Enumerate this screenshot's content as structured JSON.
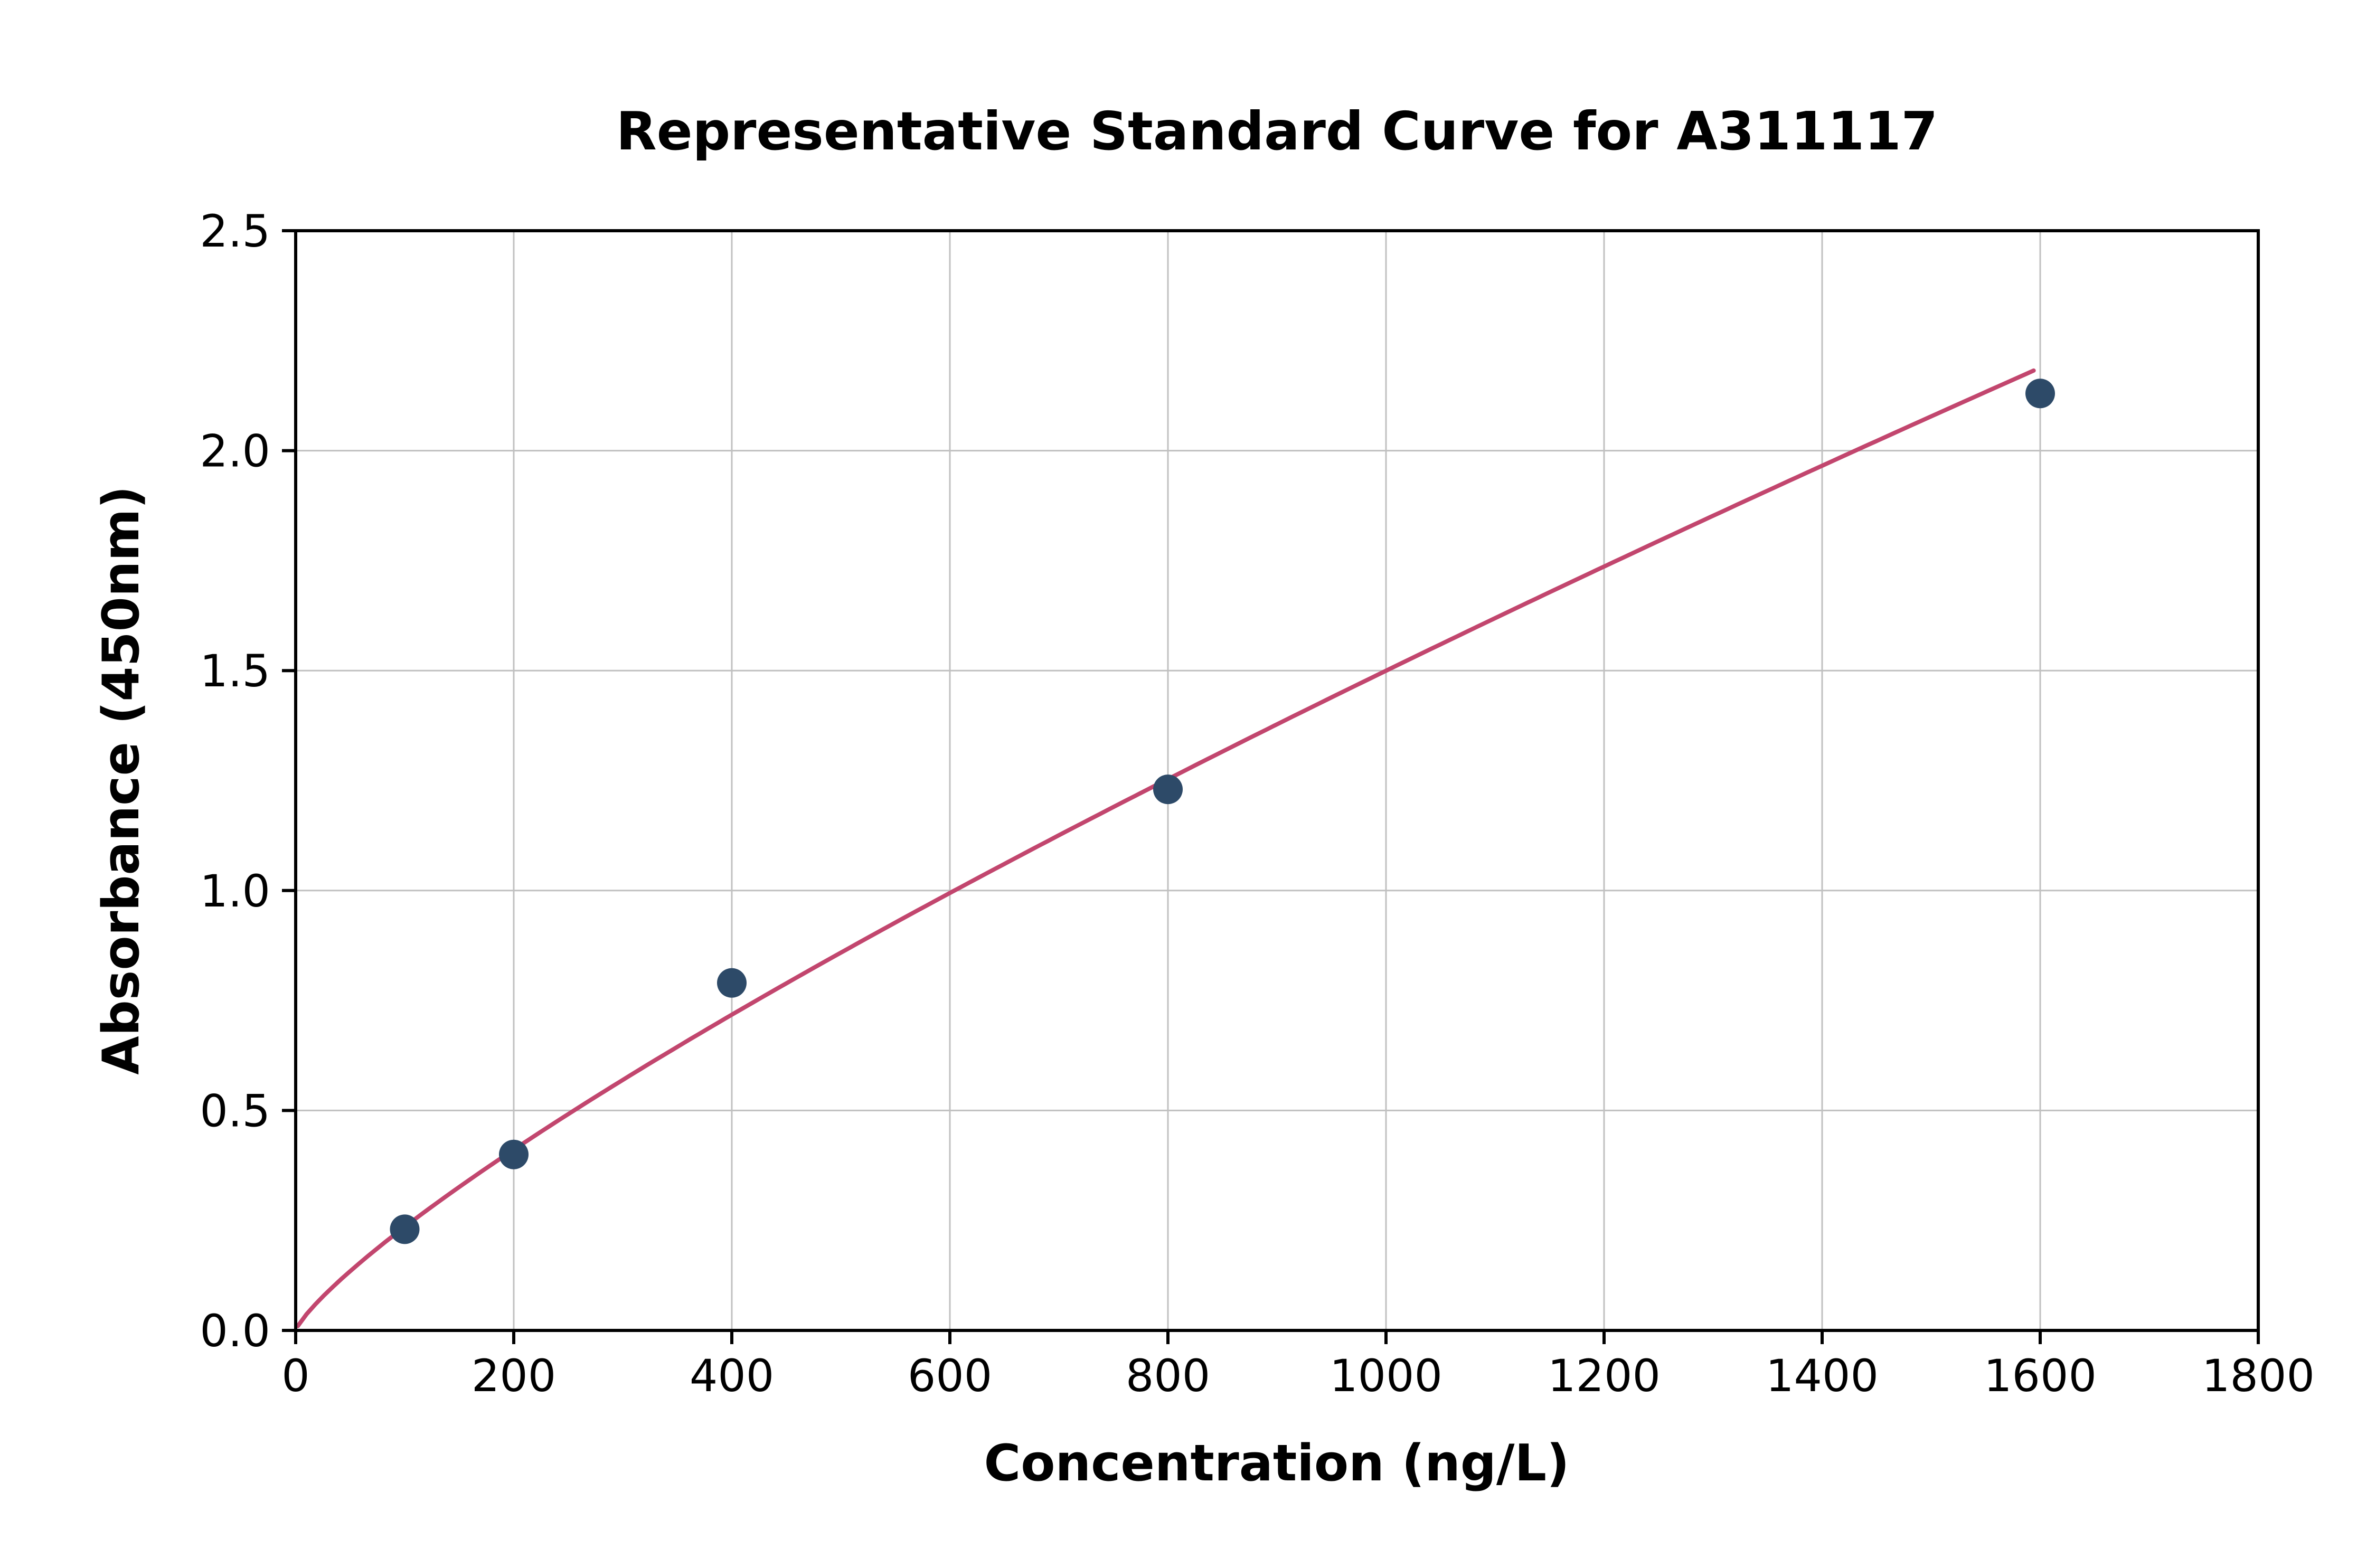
{
  "chart_data": {
    "type": "scatter",
    "title": "Representative Standard Curve for A311117",
    "xlabel": "Concentration (ng/L)",
    "ylabel": "Absorbance (450nm)",
    "x": [
      100,
      200,
      400,
      800,
      1600
    ],
    "y": [
      0.23,
      0.4,
      0.79,
      1.23,
      2.13
    ],
    "fit": {
      "type": "power",
      "x_start": 2,
      "x_end": 1600
    },
    "xlim": [
      0,
      1800
    ],
    "ylim": [
      0,
      2.5
    ],
    "xticks": [
      0,
      200,
      400,
      600,
      800,
      1000,
      1200,
      1400,
      1600,
      1800
    ],
    "xtick_labels": [
      "0",
      "200",
      "400",
      "600",
      "800",
      "1000",
      "1200",
      "1400",
      "1600",
      "1800"
    ],
    "yticks": [
      0.0,
      0.5,
      1.0,
      1.5,
      2.0,
      2.5
    ],
    "ytick_labels": [
      "0.0",
      "0.5",
      "1.0",
      "1.5",
      "2.0",
      "2.5"
    ],
    "grid": true,
    "legend": null,
    "colors": {
      "point": "#2d4a68",
      "curve": "#c2466e",
      "grid": "#c0c0c0",
      "axis": "#000000",
      "background": "#ffffff"
    }
  }
}
